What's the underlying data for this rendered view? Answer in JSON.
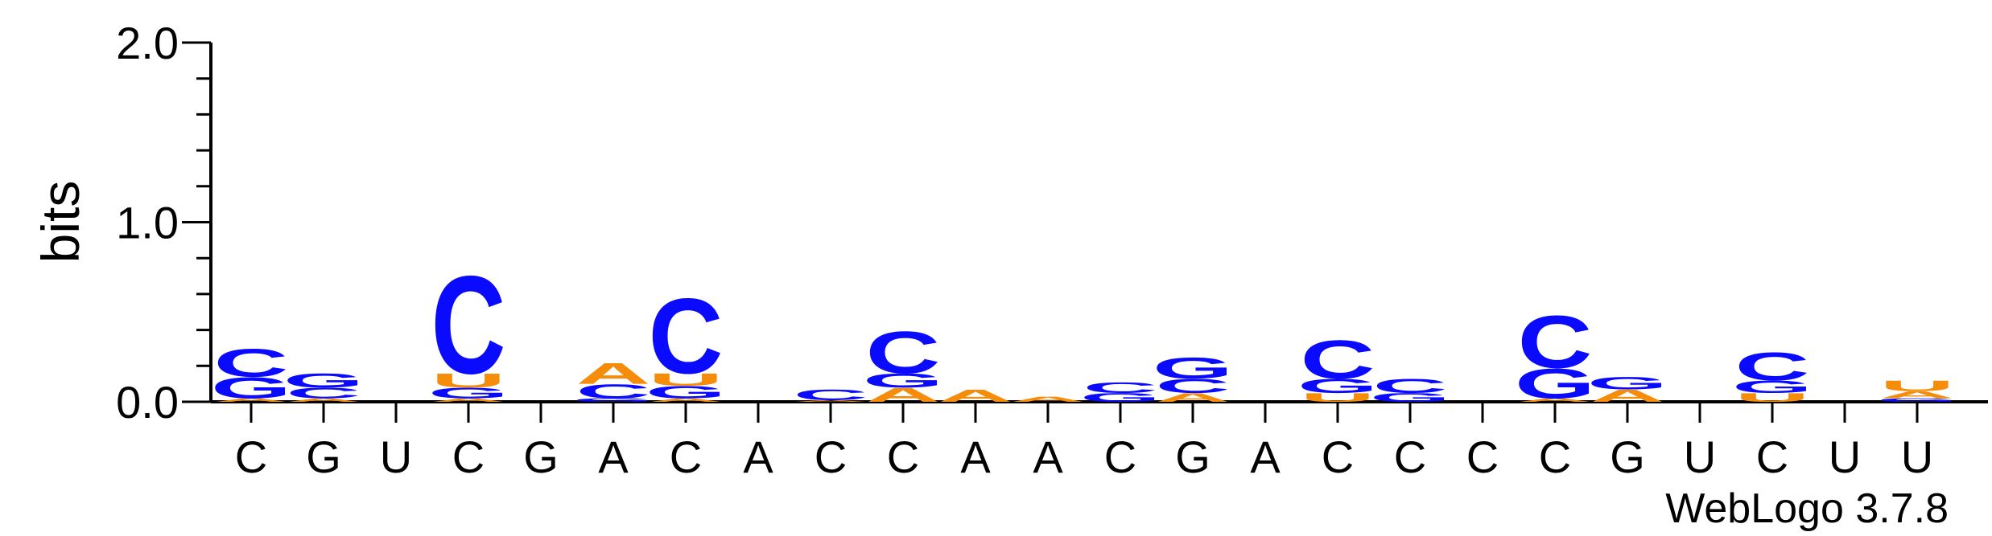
{
  "chart_data": {
    "type": "sequence-logo",
    "ylabel": "bits",
    "ylim": [
      0,
      2.0
    ],
    "yticks": [
      {
        "value": 0.0,
        "label": "0.0"
      },
      {
        "value": 1.0,
        "label": "1.0"
      },
      {
        "value": 2.0,
        "label": "2.0"
      }
    ],
    "colors": {
      "A": "#f58c0a",
      "U": "#f58c0a",
      "C": "#0a0aff",
      "G": "#0a0aff"
    },
    "positions": [
      {
        "label": "C",
        "stack": [
          {
            "letter": "A",
            "bits": 0.02
          },
          {
            "letter": "G",
            "bits": 0.12
          },
          {
            "letter": "C",
            "bits": 0.16
          }
        ]
      },
      {
        "label": "G",
        "stack": [
          {
            "letter": "A",
            "bits": 0.02
          },
          {
            "letter": "C",
            "bits": 0.06
          },
          {
            "letter": "G",
            "bits": 0.08
          }
        ]
      },
      {
        "label": "U",
        "stack": []
      },
      {
        "label": "C",
        "stack": [
          {
            "letter": "A",
            "bits": 0.02
          },
          {
            "letter": "G",
            "bits": 0.06
          },
          {
            "letter": "U",
            "bits": 0.08
          },
          {
            "letter": "C",
            "bits": 0.56
          }
        ]
      },
      {
        "label": "G",
        "stack": []
      },
      {
        "label": "A",
        "stack": [
          {
            "letter": "G",
            "bits": 0.02
          },
          {
            "letter": "C",
            "bits": 0.08
          },
          {
            "letter": "A",
            "bits": 0.12
          }
        ]
      },
      {
        "label": "C",
        "stack": [
          {
            "letter": "A",
            "bits": 0.02
          },
          {
            "letter": "G",
            "bits": 0.07
          },
          {
            "letter": "U",
            "bits": 0.07
          },
          {
            "letter": "C",
            "bits": 0.43
          }
        ]
      },
      {
        "label": "A",
        "stack": []
      },
      {
        "label": "C",
        "stack": [
          {
            "letter": "A",
            "bits": 0.01
          },
          {
            "letter": "C",
            "bits": 0.06
          }
        ]
      },
      {
        "label": "C",
        "stack": [
          {
            "letter": "A",
            "bits": 0.08
          },
          {
            "letter": "G",
            "bits": 0.08
          },
          {
            "letter": "C",
            "bits": 0.24
          }
        ]
      },
      {
        "label": "A",
        "stack": [
          {
            "letter": "A",
            "bits": 0.07
          }
        ]
      },
      {
        "label": "A",
        "stack": [
          {
            "letter": "A",
            "bits": 0.03
          }
        ]
      },
      {
        "label": "C",
        "stack": [
          {
            "letter": "G",
            "bits": 0.05
          },
          {
            "letter": "C",
            "bits": 0.06
          }
        ]
      },
      {
        "label": "G",
        "stack": [
          {
            "letter": "A",
            "bits": 0.05
          },
          {
            "letter": "C",
            "bits": 0.08
          },
          {
            "letter": "G",
            "bits": 0.12
          }
        ]
      },
      {
        "label": "A",
        "stack": []
      },
      {
        "label": "C",
        "stack": [
          {
            "letter": "U",
            "bits": 0.05
          },
          {
            "letter": "G",
            "bits": 0.08
          },
          {
            "letter": "C",
            "bits": 0.22
          }
        ]
      },
      {
        "label": "C",
        "stack": [
          {
            "letter": "G",
            "bits": 0.05
          },
          {
            "letter": "C",
            "bits": 0.08
          }
        ]
      },
      {
        "label": "C",
        "stack": []
      },
      {
        "label": "C",
        "stack": [
          {
            "letter": "A",
            "bits": 0.02
          },
          {
            "letter": "G",
            "bits": 0.17
          },
          {
            "letter": "C",
            "bits": 0.3
          }
        ]
      },
      {
        "label": "G",
        "stack": [
          {
            "letter": "A",
            "bits": 0.07
          },
          {
            "letter": "G",
            "bits": 0.07
          }
        ]
      },
      {
        "label": "U",
        "stack": []
      },
      {
        "label": "C",
        "stack": [
          {
            "letter": "U",
            "bits": 0.05
          },
          {
            "letter": "G",
            "bits": 0.07
          },
          {
            "letter": "C",
            "bits": 0.16
          }
        ]
      },
      {
        "label": "U",
        "stack": []
      },
      {
        "label": "U",
        "stack": [
          {
            "letter": "G",
            "bits": 0.02
          },
          {
            "letter": "A",
            "bits": 0.04
          },
          {
            "letter": "U",
            "bits": 0.06
          }
        ]
      }
    ]
  },
  "credit": "WebLogo 3.7.8"
}
